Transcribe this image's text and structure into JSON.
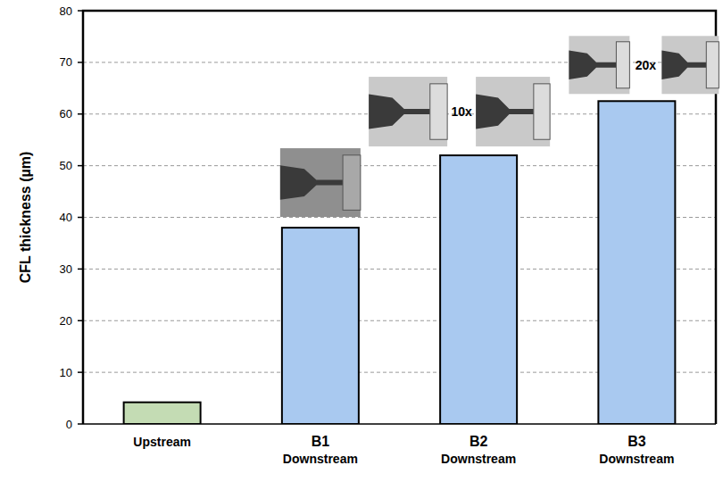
{
  "chart_data": {
    "type": "bar",
    "y_label": "CFL thickness (µm)",
    "categories": [
      "Upstream",
      "B1 Downstream",
      "B2 Downstream",
      "B3 Downstream"
    ],
    "values": [
      4.2,
      38,
      52,
      62.5
    ],
    "colors": [
      "#c4dcb4",
      "#a9c9f0",
      "#a9c9f0",
      "#a9c9f0"
    ],
    "ylim": [
      0,
      80
    ],
    "yticks": [
      0,
      10,
      20,
      30,
      40,
      50,
      60,
      70,
      80
    ],
    "grid": true,
    "annotations": [
      "10x",
      "20x"
    ]
  }
}
